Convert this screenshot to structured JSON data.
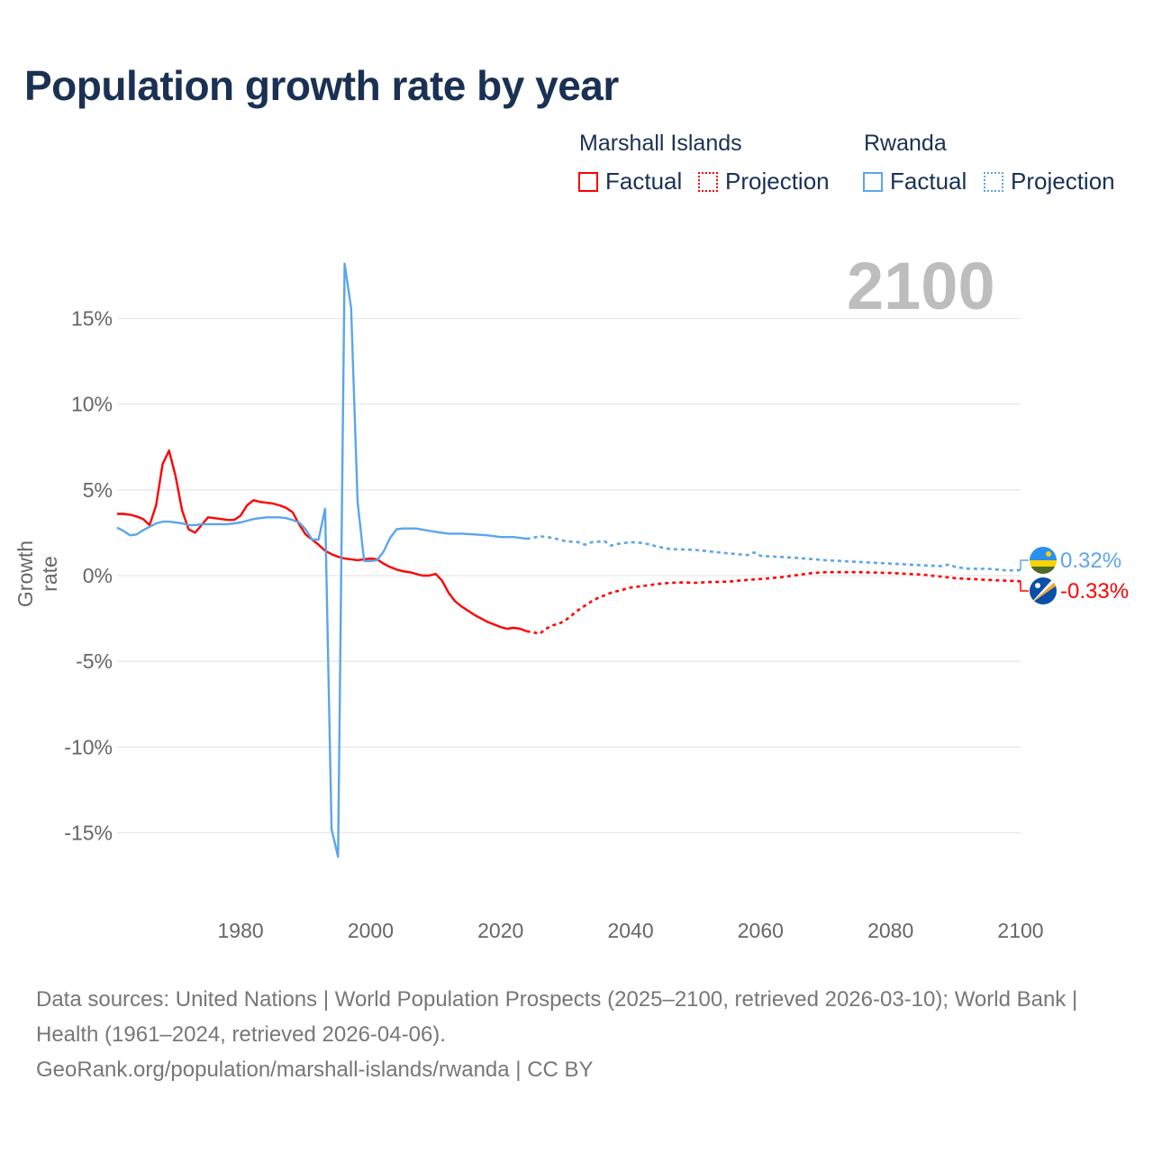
{
  "chart_data": {
    "type": "line",
    "title": "Population growth rate by year",
    "ylabel": "Growth rate",
    "xlabel": "",
    "current_year_label": "2100",
    "xlim": [
      1961,
      2100
    ],
    "ylim": [
      -17,
      18.5
    ],
    "x_ticks": [
      {
        "v": 1980,
        "label": "1980"
      },
      {
        "v": 2000,
        "label": "2000"
      },
      {
        "v": 2020,
        "label": "2020"
      },
      {
        "v": 2040,
        "label": "2040"
      },
      {
        "v": 2060,
        "label": "2060"
      },
      {
        "v": 2080,
        "label": "2080"
      },
      {
        "v": 2100,
        "label": "2100"
      }
    ],
    "y_ticks": [
      {
        "v": 15,
        "label": "15%"
      },
      {
        "v": 10,
        "label": "10%"
      },
      {
        "v": 5,
        "label": "5%"
      },
      {
        "v": 0,
        "label": "0%"
      },
      {
        "v": -5,
        "label": "-5%"
      },
      {
        "v": -10,
        "label": "-10%"
      },
      {
        "v": -15,
        "label": "-15%"
      }
    ],
    "grid": true,
    "legend": {
      "placement": "top-right",
      "groups": [
        {
          "name": "Marshall Islands",
          "color": "#ff0000",
          "factual": "Factual",
          "projection": "Projection"
        },
        {
          "name": "Rwanda",
          "color": "#5ca5ec",
          "factual": "Factual",
          "projection": "Projection"
        }
      ]
    },
    "series": [
      {
        "name": "Marshall Islands",
        "color": "#ff0000",
        "end_label": "-0.33%",
        "factual": [
          [
            1961,
            3.6
          ],
          [
            1962,
            3.6
          ],
          [
            1963,
            3.55
          ],
          [
            1964,
            3.45
          ],
          [
            1965,
            3.3
          ],
          [
            1966,
            2.95
          ],
          [
            1967,
            4.1
          ],
          [
            1968,
            6.5
          ],
          [
            1969,
            7.3
          ],
          [
            1970,
            5.8
          ],
          [
            1971,
            3.8
          ],
          [
            1972,
            2.7
          ],
          [
            1973,
            2.5
          ],
          [
            1974,
            2.95
          ],
          [
            1975,
            3.4
          ],
          [
            1976,
            3.35
          ],
          [
            1977,
            3.3
          ],
          [
            1978,
            3.25
          ],
          [
            1979,
            3.25
          ],
          [
            1980,
            3.5
          ],
          [
            1981,
            4.1
          ],
          [
            1982,
            4.4
          ],
          [
            1983,
            4.3
          ],
          [
            1984,
            4.25
          ],
          [
            1985,
            4.2
          ],
          [
            1986,
            4.1
          ],
          [
            1987,
            3.95
          ],
          [
            1988,
            3.7
          ],
          [
            1989,
            3.0
          ],
          [
            1990,
            2.4
          ],
          [
            1991,
            2.1
          ],
          [
            1992,
            1.8
          ],
          [
            1993,
            1.45
          ],
          [
            1994,
            1.25
          ],
          [
            1995,
            1.1
          ],
          [
            1996,
            1.0
          ],
          [
            1997,
            0.95
          ],
          [
            1998,
            0.9
          ],
          [
            1999,
            0.95
          ],
          [
            2000,
            1.0
          ],
          [
            2001,
            0.95
          ],
          [
            2002,
            0.7
          ],
          [
            2003,
            0.5
          ],
          [
            2004,
            0.35
          ],
          [
            2005,
            0.25
          ],
          [
            2006,
            0.2
          ],
          [
            2007,
            0.1
          ],
          [
            2008,
            0.0
          ],
          [
            2009,
            0.0
          ],
          [
            2010,
            0.1
          ],
          [
            2011,
            -0.3
          ],
          [
            2012,
            -1.0
          ],
          [
            2013,
            -1.5
          ],
          [
            2014,
            -1.8
          ],
          [
            2015,
            -2.05
          ],
          [
            2016,
            -2.3
          ],
          [
            2017,
            -2.5
          ],
          [
            2018,
            -2.7
          ],
          [
            2019,
            -2.85
          ],
          [
            2020,
            -3.0
          ],
          [
            2021,
            -3.1
          ],
          [
            2022,
            -3.05
          ],
          [
            2023,
            -3.1
          ],
          [
            2024,
            -3.25
          ]
        ],
        "projection": [
          [
            2024,
            -3.25
          ],
          [
            2025,
            -3.3
          ],
          [
            2026,
            -3.4
          ],
          [
            2027,
            -3.1
          ],
          [
            2028,
            -2.9
          ],
          [
            2029,
            -2.8
          ],
          [
            2030,
            -2.6
          ],
          [
            2031,
            -2.3
          ],
          [
            2032,
            -2.0
          ],
          [
            2033,
            -1.75
          ],
          [
            2034,
            -1.5
          ],
          [
            2035,
            -1.3
          ],
          [
            2036,
            -1.15
          ],
          [
            2037,
            -1.0
          ],
          [
            2038,
            -0.9
          ],
          [
            2039,
            -0.8
          ],
          [
            2040,
            -0.7
          ],
          [
            2042,
            -0.6
          ],
          [
            2044,
            -0.5
          ],
          [
            2046,
            -0.42
          ],
          [
            2048,
            -0.4
          ],
          [
            2050,
            -0.42
          ],
          [
            2052,
            -0.38
          ],
          [
            2055,
            -0.35
          ],
          [
            2058,
            -0.25
          ],
          [
            2060,
            -0.2
          ],
          [
            2063,
            -0.1
          ],
          [
            2065,
            0.0
          ],
          [
            2068,
            0.15
          ],
          [
            2070,
            0.2
          ],
          [
            2075,
            0.2
          ],
          [
            2080,
            0.15
          ],
          [
            2085,
            0.05
          ],
          [
            2090,
            -0.15
          ],
          [
            2095,
            -0.25
          ],
          [
            2100,
            -0.33
          ]
        ]
      },
      {
        "name": "Rwanda",
        "color": "#5ca5ec",
        "end_label": "0.32%",
        "factual": [
          [
            1961,
            2.8
          ],
          [
            1962,
            2.6
          ],
          [
            1963,
            2.35
          ],
          [
            1964,
            2.4
          ],
          [
            1965,
            2.65
          ],
          [
            1966,
            2.85
          ],
          [
            1967,
            3.05
          ],
          [
            1968,
            3.15
          ],
          [
            1969,
            3.15
          ],
          [
            1970,
            3.1
          ],
          [
            1971,
            3.05
          ],
          [
            1972,
            2.95
          ],
          [
            1973,
            2.95
          ],
          [
            1974,
            3.0
          ],
          [
            1975,
            3.0
          ],
          [
            1976,
            3.0
          ],
          [
            1977,
            3.0
          ],
          [
            1978,
            3.0
          ],
          [
            1979,
            3.05
          ],
          [
            1980,
            3.1
          ],
          [
            1981,
            3.2
          ],
          [
            1982,
            3.3
          ],
          [
            1983,
            3.35
          ],
          [
            1984,
            3.4
          ],
          [
            1985,
            3.4
          ],
          [
            1986,
            3.4
          ],
          [
            1987,
            3.35
          ],
          [
            1988,
            3.25
          ],
          [
            1989,
            3.1
          ],
          [
            1990,
            2.7
          ],
          [
            1991,
            2.1
          ],
          [
            1992,
            2.1
          ],
          [
            1993,
            3.9
          ],
          [
            1994,
            -14.8
          ],
          [
            1995,
            -16.4
          ],
          [
            1996,
            18.2
          ],
          [
            1997,
            15.6
          ],
          [
            1998,
            4.3
          ],
          [
            1999,
            0.85
          ],
          [
            2000,
            0.85
          ],
          [
            2001,
            0.9
          ],
          [
            2002,
            1.4
          ],
          [
            2003,
            2.2
          ],
          [
            2004,
            2.7
          ],
          [
            2005,
            2.75
          ],
          [
            2007,
            2.75
          ],
          [
            2010,
            2.55
          ],
          [
            2012,
            2.45
          ],
          [
            2014,
            2.45
          ],
          [
            2016,
            2.4
          ],
          [
            2018,
            2.35
          ],
          [
            2020,
            2.25
          ],
          [
            2022,
            2.25
          ],
          [
            2024,
            2.15
          ]
        ],
        "projection": [
          [
            2024,
            2.15
          ],
          [
            2025,
            2.2
          ],
          [
            2026,
            2.3
          ],
          [
            2028,
            2.2
          ],
          [
            2030,
            2.0
          ],
          [
            2032,
            1.95
          ],
          [
            2033,
            1.8
          ],
          [
            2034,
            1.95
          ],
          [
            2036,
            2.0
          ],
          [
            2037,
            1.75
          ],
          [
            2038,
            1.85
          ],
          [
            2040,
            1.95
          ],
          [
            2042,
            1.9
          ],
          [
            2044,
            1.7
          ],
          [
            2046,
            1.55
          ],
          [
            2050,
            1.5
          ],
          [
            2055,
            1.3
          ],
          [
            2058,
            1.2
          ],
          [
            2059,
            1.35
          ],
          [
            2060,
            1.15
          ],
          [
            2065,
            1.05
          ],
          [
            2070,
            0.9
          ],
          [
            2075,
            0.8
          ],
          [
            2080,
            0.7
          ],
          [
            2085,
            0.6
          ],
          [
            2088,
            0.55
          ],
          [
            2089,
            0.65
          ],
          [
            2090,
            0.5
          ],
          [
            2092,
            0.4
          ],
          [
            2095,
            0.4
          ],
          [
            2098,
            0.3
          ],
          [
            2100,
            0.32
          ]
        ]
      }
    ]
  },
  "footer": {
    "line1": "Data sources: United Nations | World Population Prospects (2025–2100, retrieved 2026-03-10); World Bank | Health (1961–2024, retrieved 2026-04-06).",
    "line2": "GeoRank.org/population/marshall-islands/rwanda | CC BY"
  }
}
